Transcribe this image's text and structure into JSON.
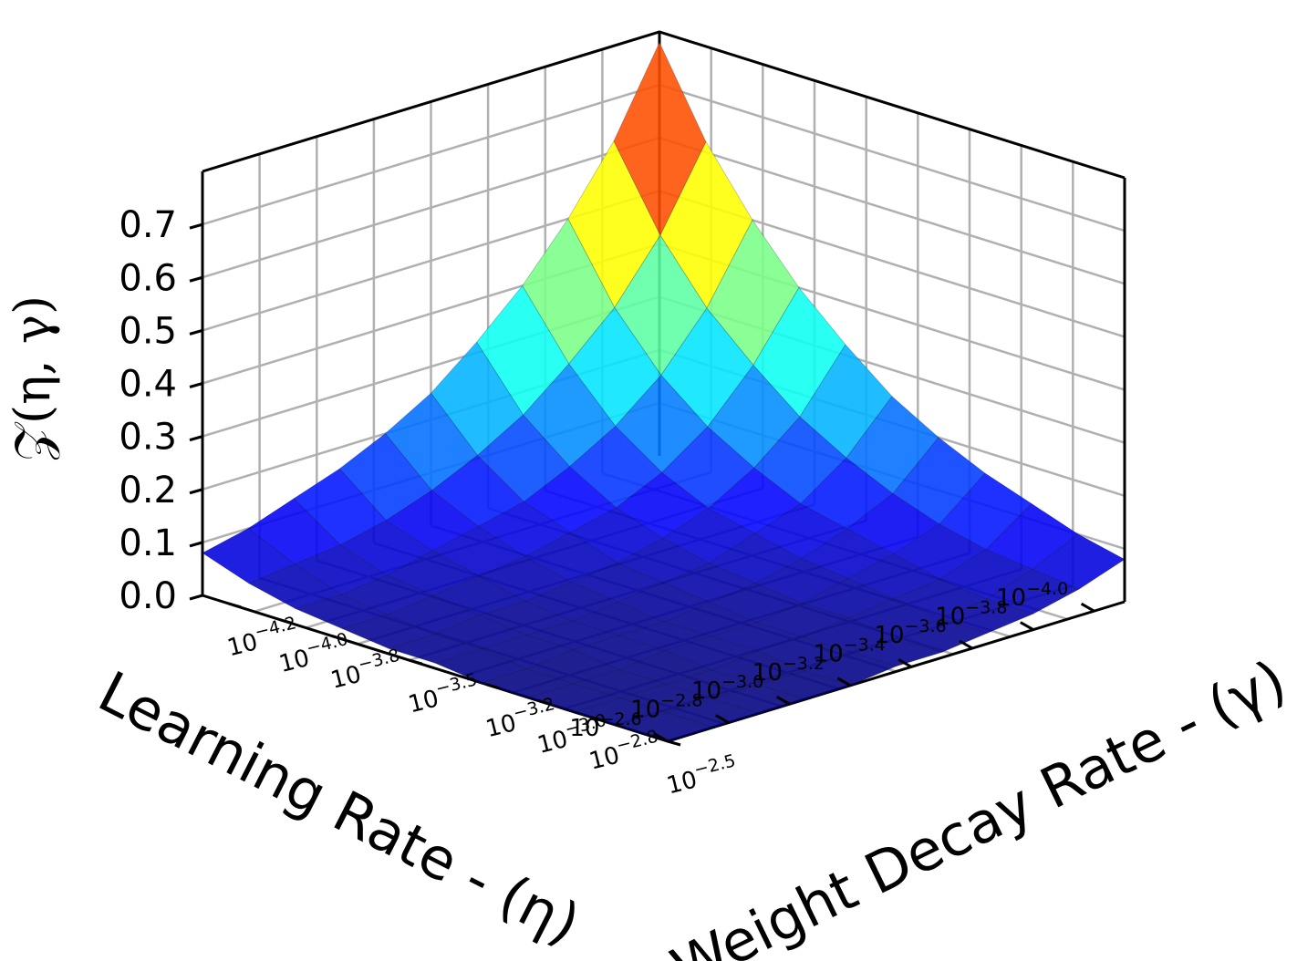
{
  "chart_data": {
    "type": "surface3d",
    "colormap": "jet",
    "xlabel": "Learning Rate - (η)",
    "ylabel": "Weight Decay Rate - (γ)",
    "zlabel": "𝒵(η, γ)",
    "grid": true,
    "x_scale": "log10",
    "y_scale": "log10",
    "xlim": [
      -4.1,
      -2.6
    ],
    "ylim": [
      -4.3,
      -2.5
    ],
    "zlim": [
      0.0,
      0.8
    ],
    "x_ticks": [
      {
        "base": "10",
        "exp": "−4.0"
      },
      {
        "base": "10",
        "exp": "−3.8"
      },
      {
        "base": "10",
        "exp": "−3.6"
      },
      {
        "base": "10",
        "exp": "−3.4"
      },
      {
        "base": "10",
        "exp": "−3.2"
      },
      {
        "base": "10",
        "exp": "−3.0"
      },
      {
        "base": "10",
        "exp": "−2.8"
      },
      {
        "base": "10",
        "exp": "−2.6"
      }
    ],
    "y_ticks": [
      {
        "base": "10",
        "exp": "−4.2"
      },
      {
        "base": "10",
        "exp": "−4.0"
      },
      {
        "base": "10",
        "exp": "−3.8"
      },
      {
        "base": "10",
        "exp": "−3.5"
      },
      {
        "base": "10",
        "exp": "−3.2"
      },
      {
        "base": "10",
        "exp": "−3.0"
      },
      {
        "base": "10",
        "exp": "−2.8"
      },
      {
        "base": "10",
        "exp": "−2.5"
      }
    ],
    "z_ticks": [
      "0.0",
      "0.1",
      "0.2",
      "0.3",
      "0.4",
      "0.5",
      "0.6",
      "0.7"
    ],
    "x": [
      -4.1,
      -3.95,
      -3.8,
      -3.65,
      -3.5,
      -3.35,
      -3.2,
      -3.05,
      -2.9,
      -2.75,
      -2.6
    ],
    "y": [
      -4.3,
      -4.12,
      -3.94,
      -3.76,
      -3.58,
      -3.4,
      -3.22,
      -3.04,
      -2.86,
      -2.68,
      -2.5
    ],
    "z": [
      [
        0.78,
        0.62,
        0.5,
        0.4,
        0.32,
        0.25,
        0.2,
        0.16,
        0.13,
        0.1,
        0.08
      ],
      [
        0.62,
        0.47,
        0.36,
        0.28,
        0.21,
        0.16,
        0.12,
        0.09,
        0.07,
        0.06,
        0.05
      ],
      [
        0.5,
        0.36,
        0.26,
        0.19,
        0.14,
        0.1,
        0.08,
        0.06,
        0.04,
        0.03,
        0.03
      ],
      [
        0.4,
        0.28,
        0.19,
        0.13,
        0.09,
        0.07,
        0.05,
        0.04,
        0.03,
        0.02,
        0.02
      ],
      [
        0.32,
        0.21,
        0.14,
        0.09,
        0.06,
        0.04,
        0.03,
        0.02,
        0.02,
        0.01,
        0.01
      ],
      [
        0.25,
        0.16,
        0.1,
        0.07,
        0.04,
        0.03,
        0.02,
        0.01,
        0.01,
        0.01,
        0.01
      ],
      [
        0.2,
        0.12,
        0.08,
        0.05,
        0.03,
        0.02,
        0.01,
        0.01,
        0.01,
        0.0,
        0.0
      ],
      [
        0.16,
        0.09,
        0.06,
        0.04,
        0.02,
        0.01,
        0.01,
        0.01,
        0.0,
        0.0,
        0.0
      ],
      [
        0.13,
        0.07,
        0.04,
        0.03,
        0.02,
        0.01,
        0.01,
        0.0,
        0.0,
        0.0,
        0.0
      ],
      [
        0.1,
        0.06,
        0.03,
        0.02,
        0.01,
        0.01,
        0.0,
        0.0,
        0.0,
        0.0,
        0.0
      ],
      [
        0.08,
        0.05,
        0.03,
        0.02,
        0.01,
        0.01,
        0.0,
        0.0,
        0.0,
        0.0,
        0.0
      ]
    ]
  }
}
